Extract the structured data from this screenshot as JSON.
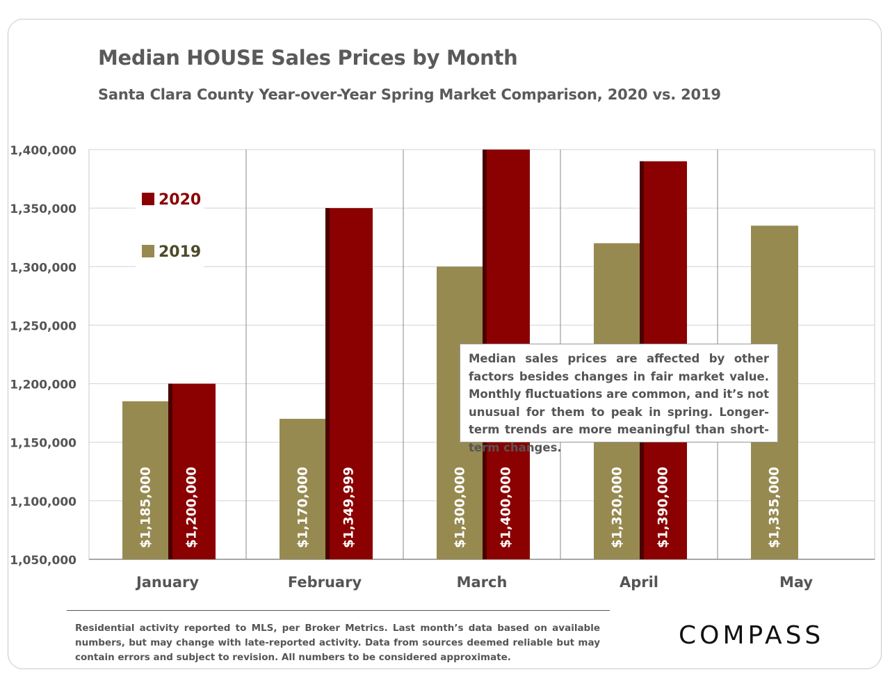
{
  "title": "Median HOUSE Sales Prices by Month",
  "subtitle": "Santa Clara County Year-over-Year Spring Market Comparison, 2020 vs. 2019",
  "note": "Median sales prices are affected by other factors besides changes in fair market value. Monthly fluctuations are common, and it’s not unusual for them to peak in spring. Longer-term trends are more meaningful than short-term changes.",
  "footnote": "Residential activity reported to MLS, per Broker Metrics. Last month’s data based on available numbers, but may change with late-reported activity. Data from sources deemed reliable but may contain errors and subject to revision. All numbers to be considered approximate.",
  "logo": "COMPASS",
  "colors": {
    "2019": "#978a51",
    "2020": "#8b0000",
    "2020_edge": "#4a0000"
  },
  "chart_data": {
    "type": "bar",
    "categories": [
      "January",
      "February",
      "March",
      "April",
      "May"
    ],
    "series": [
      {
        "name": "2019",
        "values": [
          1185000,
          1170000,
          1300000,
          1320000,
          1335000
        ],
        "labels": [
          "$1,185,000",
          "$1,170,000",
          "$1,300,000",
          "$1,320,000",
          "$1,335,000"
        ]
      },
      {
        "name": "2020",
        "values": [
          1200000,
          1349999,
          1400000,
          1390000,
          null
        ],
        "labels": [
          "$1,200,000",
          "$1,349,999",
          "$1,400,000",
          "$1,390,000",
          ""
        ]
      }
    ],
    "ylim": [
      1050000,
      1400000
    ],
    "yticks": [
      1050000,
      1100000,
      1150000,
      1200000,
      1250000,
      1300000,
      1350000,
      1400000
    ],
    "ytick_labels": [
      "1,050,000",
      "1,100,000",
      "1,150,000",
      "1,200,000",
      "1,250,000",
      "1,300,000",
      "1,350,000",
      "1,400,000"
    ],
    "legend": {
      "placement": "top-left",
      "order": [
        "2020",
        "2019"
      ]
    },
    "grid": true
  }
}
